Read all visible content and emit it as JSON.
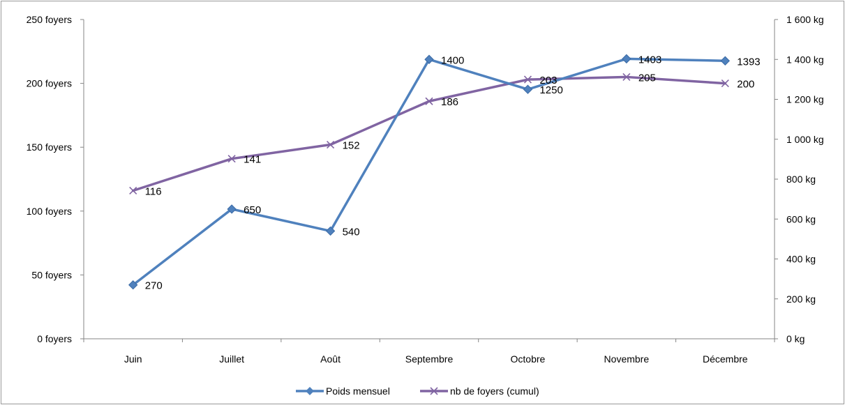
{
  "chart_data": {
    "type": "line",
    "categories": [
      "Juin",
      "Juillet",
      "Août",
      "Septembre",
      "Octobre",
      "Novembre",
      "Décembre"
    ],
    "series": [
      {
        "name": "Poids mensuel",
        "axis": "right",
        "color": "#4F81BD",
        "marker": "diamond",
        "values": [
          270,
          650,
          540,
          1400,
          1250,
          1403,
          1393
        ],
        "labels": [
          "270",
          "650",
          "540",
          "1400",
          "1250",
          "1403",
          "1393"
        ]
      },
      {
        "name": "nb de foyers (cumul)",
        "axis": "left",
        "color": "#8064A2",
        "marker": "x",
        "values": [
          116,
          141,
          152,
          186,
          203,
          205,
          200
        ],
        "labels": [
          "116",
          "141",
          "152",
          "186",
          "203",
          "205",
          "200"
        ]
      }
    ],
    "left_axis": {
      "ylim": [
        0,
        250
      ],
      "ticks": [
        0,
        50,
        100,
        150,
        200,
        250
      ],
      "tick_labels": [
        "0 foyers",
        "50 foyers",
        "100 foyers",
        "150 foyers",
        "200 foyers",
        "250 foyers"
      ]
    },
    "right_axis": {
      "ylim": [
        0,
        1600
      ],
      "ticks": [
        0,
        200,
        400,
        600,
        800,
        1000,
        1200,
        1400,
        1600
      ],
      "tick_labels": [
        "0 kg",
        "200 kg",
        "400 kg",
        "600 kg",
        "800 kg",
        "1 000 kg",
        "1 200 kg",
        "1 400 kg",
        "1 600 kg"
      ]
    },
    "grid": false,
    "legend_position": "bottom"
  }
}
